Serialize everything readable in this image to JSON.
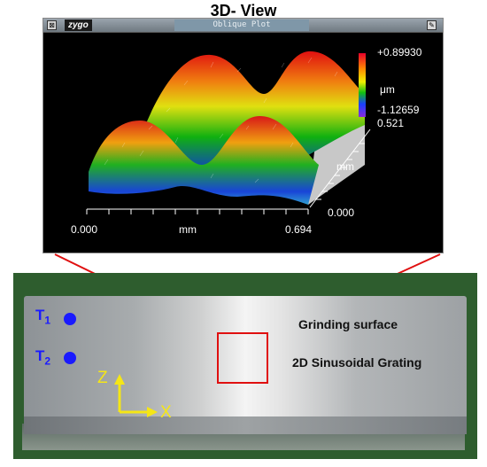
{
  "title": "3D- View",
  "window": {
    "logo": "zygo",
    "plot_title": "Oblique Plot",
    "close_glyph": "⊠",
    "pin_glyph": "✎"
  },
  "plot": {
    "z_max": "+0.89930",
    "z_unit": "μm",
    "z_min": "-1.12659",
    "y_max": "0.521",
    "y_unit": "mm",
    "y_min": "0.000",
    "x_min": "0.000",
    "x_unit": "mm",
    "x_max": "0.694"
  },
  "photo": {
    "marker1": {
      "letter": "T",
      "sub": "1"
    },
    "marker2": {
      "letter": "T",
      "sub": "2"
    },
    "label_grinding": "Grinding surface",
    "label_grating": "2D Sinusoidal Grating",
    "axis_z": "Z",
    "axis_x": "X",
    "marker_color": "#1a1aff",
    "highlight_color": "#e01010",
    "axis_color": "#f5e616"
  }
}
